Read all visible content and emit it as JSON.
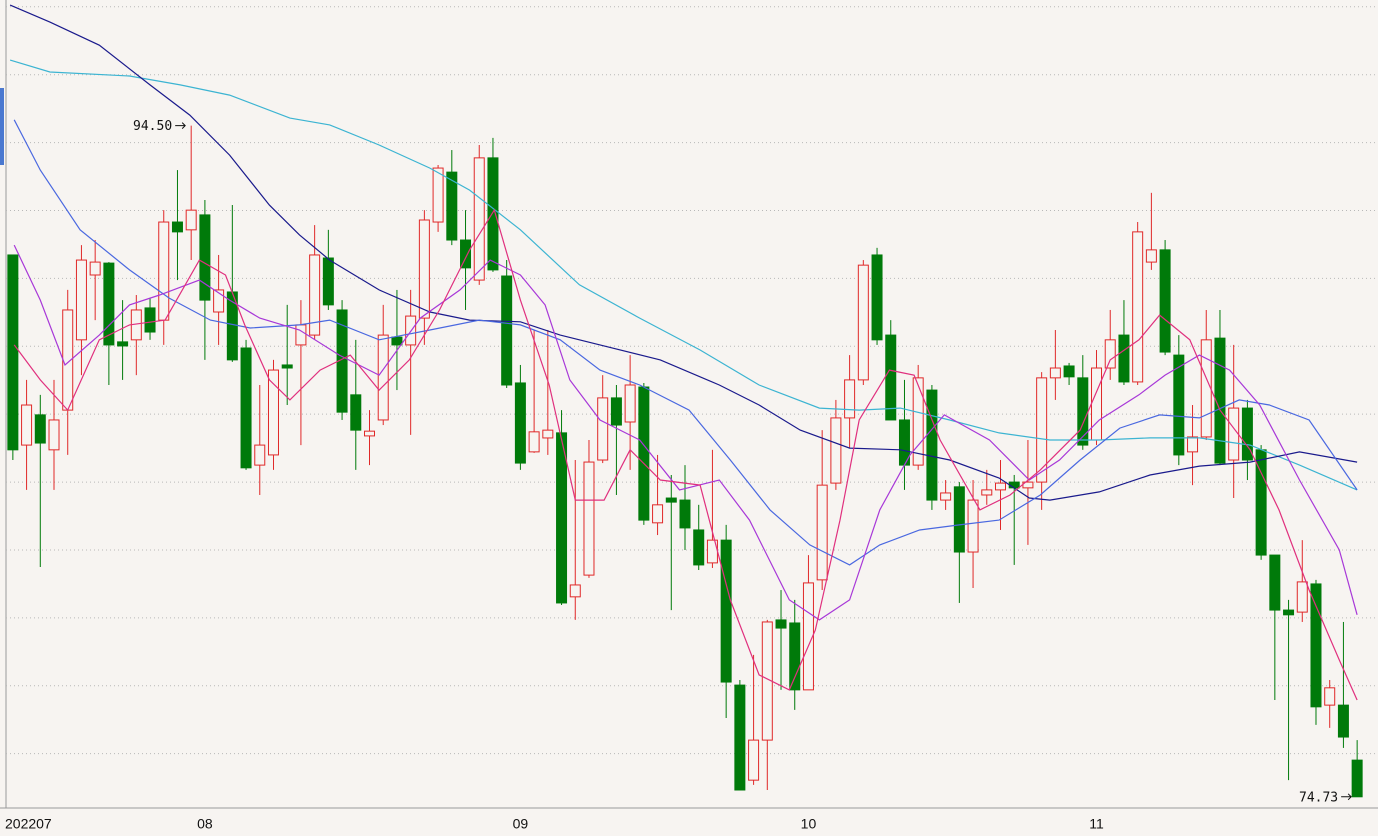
{
  "chart_data": {
    "type": "candlestick",
    "up_color": "#e02828",
    "down_color": "#007a0a",
    "ylim": [
      74.4,
      98.2
    ],
    "yticks": [
      76,
      78,
      80,
      82,
      84,
      86,
      88,
      90,
      92,
      94,
      96,
      98
    ],
    "grid": true,
    "categories": [
      "202207",
      null,
      null,
      null,
      null,
      null,
      null,
      null,
      null,
      null,
      null,
      null,
      null,
      null,
      "08",
      null,
      null,
      null,
      null,
      null,
      null,
      null,
      null,
      null,
      null,
      null,
      null,
      null,
      null,
      null,
      null,
      null,
      null,
      null,
      null,
      null,
      null,
      "09",
      null,
      null,
      null,
      null,
      null,
      null,
      null,
      null,
      null,
      null,
      null,
      null,
      null,
      null,
      null,
      null,
      null,
      null,
      null,
      null,
      "10",
      null,
      null,
      null,
      null,
      null,
      null,
      null,
      null,
      null,
      null,
      null,
      null,
      null,
      null,
      null,
      null,
      null,
      null,
      null,
      null,
      "11",
      null,
      null,
      null,
      null,
      null,
      null,
      null,
      null,
      null,
      null,
      null,
      null,
      null,
      null,
      null,
      null,
      null,
      null,
      null
    ],
    "candles": [
      [
        90.69,
        90.69,
        84.65,
        84.95
      ],
      [
        85.09,
        87.01,
        83.77,
        86.27
      ],
      [
        85.98,
        86.57,
        81.5,
        85.15
      ],
      [
        84.95,
        87.01,
        83.77,
        85.83
      ],
      [
        86.12,
        89.66,
        84.8,
        89.07
      ],
      [
        88.19,
        90.98,
        87.15,
        90.54
      ],
      [
        90.1,
        91.13,
        88.77,
        90.48
      ],
      [
        90.45,
        90.48,
        86.86,
        88.04
      ],
      [
        88.13,
        89.36,
        87.01,
        88.01
      ],
      [
        88.19,
        89.51,
        87.15,
        89.07
      ],
      [
        89.13,
        89.42,
        88.19,
        88.42
      ],
      [
        88.77,
        92.01,
        88.04,
        91.66
      ],
      [
        91.66,
        93.19,
        89.95,
        91.37
      ],
      [
        91.43,
        94.5,
        90.54,
        92.01
      ],
      [
        91.87,
        92.31,
        87.6,
        89.36
      ],
      [
        89.01,
        90.69,
        88.04,
        89.66
      ],
      [
        89.6,
        92.16,
        87.54,
        87.6
      ],
      [
        87.95,
        88.19,
        84.36,
        84.42
      ],
      [
        84.5,
        86.86,
        83.62,
        85.09
      ],
      [
        84.8,
        87.6,
        84.36,
        87.3
      ],
      [
        87.45,
        89.22,
        86.27,
        87.36
      ],
      [
        88.04,
        89.36,
        85.09,
        88.63
      ],
      [
        88.33,
        91.57,
        88.19,
        90.69
      ],
      [
        90.6,
        91.43,
        89.07,
        89.22
      ],
      [
        89.07,
        89.36,
        85.83,
        86.06
      ],
      [
        86.57,
        88.19,
        84.36,
        85.53
      ],
      [
        85.36,
        86.12,
        84.5,
        85.5
      ],
      [
        85.83,
        89.22,
        85.68,
        88.33
      ],
      [
        88.27,
        89.66,
        86.71,
        88.04
      ],
      [
        88.04,
        89.66,
        85.39,
        88.89
      ],
      [
        88.83,
        92.01,
        88.04,
        91.72
      ],
      [
        91.66,
        93.34,
        91.37,
        93.25
      ],
      [
        93.13,
        93.78,
        90.98,
        91.13
      ],
      [
        91.13,
        92.01,
        89.07,
        90.31
      ],
      [
        89.95,
        93.93,
        89.81,
        93.55
      ],
      [
        93.55,
        94.14,
        90.19,
        90.25
      ],
      [
        90.07,
        90.54,
        86.77,
        86.86
      ],
      [
        86.92,
        87.45,
        84.36,
        84.56
      ],
      [
        84.89,
        88.48,
        84.86,
        85.48
      ],
      [
        85.3,
        88.48,
        84.8,
        85.53
      ],
      [
        85.45,
        86.12,
        80.38,
        80.44
      ],
      [
        80.62,
        84.65,
        79.94,
        80.97
      ],
      [
        81.26,
        85.24,
        81.18,
        84.59
      ],
      [
        84.65,
        87.15,
        84.56,
        86.48
      ],
      [
        86.48,
        86.86,
        83.62,
        85.68
      ],
      [
        85.77,
        87.74,
        84.36,
        86.86
      ],
      [
        86.8,
        86.92,
        82.74,
        82.88
      ],
      [
        82.8,
        84.8,
        82.44,
        83.33
      ],
      [
        83.53,
        84.21,
        80.23,
        83.41
      ],
      [
        83.47,
        84.5,
        82.0,
        82.65
      ],
      [
        82.59,
        83.33,
        81.41,
        81.56
      ],
      [
        81.62,
        84.95,
        81.47,
        82.29
      ],
      [
        82.29,
        82.74,
        77.05,
        78.11
      ],
      [
        78.02,
        78.17,
        74.93,
        74.93
      ],
      [
        75.22,
        78.91,
        75.08,
        76.4
      ],
      [
        76.4,
        79.94,
        74.93,
        79.88
      ],
      [
        79.94,
        80.82,
        77.88,
        79.7
      ],
      [
        79.85,
        80.53,
        77.29,
        77.88
      ],
      [
        77.88,
        81.85,
        77.88,
        81.03
      ],
      [
        81.12,
        85.53,
        80.82,
        83.91
      ],
      [
        83.97,
        86.42,
        83.77,
        85.89
      ],
      [
        85.89,
        87.74,
        85.0,
        87.01
      ],
      [
        87.01,
        90.54,
        86.86,
        90.39
      ],
      [
        90.69,
        90.9,
        88.04,
        88.19
      ],
      [
        88.33,
        88.77,
        85.83,
        85.83
      ],
      [
        85.83,
        87.01,
        83.77,
        84.5
      ],
      [
        84.5,
        87.45,
        84.36,
        87.07
      ],
      [
        86.71,
        86.86,
        83.18,
        83.47
      ],
      [
        83.47,
        84.06,
        83.18,
        83.68
      ],
      [
        83.86,
        84.0,
        80.44,
        81.94
      ],
      [
        81.94,
        84.06,
        80.88,
        83.47
      ],
      [
        83.62,
        84.36,
        83.33,
        83.77
      ],
      [
        83.77,
        84.65,
        82.59,
        83.97
      ],
      [
        84.0,
        84.21,
        81.56,
        83.83
      ],
      [
        83.83,
        85.24,
        82.15,
        84.0
      ],
      [
        84.0,
        87.24,
        83.18,
        87.07
      ],
      [
        87.07,
        88.48,
        86.42,
        87.36
      ],
      [
        87.42,
        87.51,
        86.86,
        87.1
      ],
      [
        87.07,
        87.74,
        84.95,
        85.09
      ],
      [
        85.24,
        87.89,
        85.09,
        87.36
      ],
      [
        87.36,
        89.07,
        87.01,
        88.19
      ],
      [
        88.33,
        89.36,
        86.86,
        86.95
      ],
      [
        86.95,
        91.66,
        86.86,
        91.37
      ],
      [
        90.48,
        92.52,
        90.25,
        90.84
      ],
      [
        90.84,
        91.13,
        87.74,
        87.83
      ],
      [
        87.74,
        88.33,
        84.5,
        84.8
      ],
      [
        84.89,
        86.27,
        83.91,
        85.33
      ],
      [
        85.33,
        89.07,
        85.24,
        88.19
      ],
      [
        88.24,
        89.07,
        84.5,
        84.56
      ],
      [
        84.65,
        88.04,
        83.53,
        86.18
      ],
      [
        86.18,
        86.42,
        84.06,
        84.65
      ],
      [
        84.95,
        85.09,
        81.71,
        81.85
      ],
      [
        81.85,
        81.85,
        77.58,
        80.23
      ],
      [
        80.23,
        80.53,
        75.22,
        80.09
      ],
      [
        80.17,
        82.29,
        79.88,
        81.06
      ],
      [
        81.0,
        81.12,
        76.85,
        77.38
      ],
      [
        77.43,
        78.17,
        76.76,
        77.94
      ],
      [
        77.43,
        79.88,
        76.17,
        76.49
      ],
      [
        75.81,
        76.4,
        74.73,
        74.73
      ]
    ],
    "series": [
      {
        "color": "#3cb4d2",
        "x": [
          -0.2,
          2.7,
          8.5,
          12.2,
          15.8,
          20.2,
          23.1,
          26.7,
          30.4,
          33.3,
          37.0,
          41.3,
          45.7,
          50.1,
          54.4,
          58.8,
          61.7,
          64.7,
          68.3,
          71.9,
          75.6,
          79.2,
          82.9,
          86.5,
          90.2,
          93.8,
          98.0
        ],
        "values": [
          96.43,
          96.08,
          95.96,
          95.7,
          95.4,
          94.72,
          94.52,
          93.93,
          93.25,
          92.6,
          91.43,
          89.81,
          88.83,
          87.89,
          86.86,
          86.18,
          86.12,
          86.18,
          85.83,
          85.45,
          85.24,
          85.24,
          85.3,
          85.3,
          85.09,
          84.5,
          83.77
        ]
      },
      {
        "color": "#1a1a8c",
        "x": [
          -0.2,
          2.7,
          6.3,
          10.0,
          12.9,
          15.8,
          18.7,
          20.9,
          23.1,
          26.7,
          30.4,
          33.3,
          37.0,
          39.9,
          42.8,
          47.2,
          51.5,
          54.4,
          57.4,
          61.0,
          64.7,
          68.3,
          71.9,
          74.1,
          75.6,
          79.2,
          82.9,
          86.5,
          90.2,
          93.8,
          98.0
        ],
        "values": [
          98.05,
          97.55,
          96.87,
          95.7,
          94.81,
          93.63,
          92.16,
          91.28,
          90.54,
          89.66,
          89.01,
          88.77,
          88.72,
          88.33,
          88.04,
          87.6,
          86.86,
          86.27,
          85.53,
          85.0,
          84.95,
          84.65,
          84.12,
          83.53,
          83.47,
          83.71,
          84.21,
          84.47,
          84.59,
          84.89,
          84.59
        ]
      },
      {
        "color": "#4a68e0",
        "x": [
          0.1,
          2.0,
          4.9,
          8.5,
          11.4,
          14.4,
          17.3,
          20.9,
          23.1,
          26.7,
          30.4,
          34.0,
          37.0,
          39.9,
          42.8,
          45.7,
          49.3,
          52.3,
          55.2,
          58.1,
          61.0,
          63.2,
          66.1,
          69.0,
          71.9,
          74.9,
          77.8,
          80.7,
          83.6,
          86.5,
          89.4,
          91.6,
          94.5,
          98.0
        ],
        "values": [
          94.67,
          93.19,
          91.43,
          90.25,
          89.42,
          88.77,
          88.54,
          88.63,
          88.77,
          88.19,
          88.48,
          88.77,
          88.63,
          88.19,
          87.3,
          86.86,
          86.12,
          84.65,
          83.18,
          82.15,
          81.56,
          82.15,
          82.59,
          82.74,
          82.88,
          83.62,
          84.65,
          85.59,
          85.98,
          85.89,
          86.42,
          86.27,
          85.83,
          83.77
        ]
      },
      {
        "color": "#a838d8",
        "x": [
          0.1,
          2.0,
          3.8,
          6.3,
          8.5,
          10.7,
          13.6,
          15.8,
          18.0,
          20.9,
          23.8,
          26.7,
          29.7,
          32.6,
          34.8,
          37.0,
          38.8,
          40.6,
          42.8,
          45.7,
          48.6,
          51.5,
          53.7,
          56.6,
          58.8,
          61.0,
          63.2,
          65.4,
          67.9,
          71.2,
          74.1,
          76.3,
          79.2,
          82.1,
          84.0,
          86.5,
          88.7,
          90.9,
          93.8,
          96.7,
          98.0
        ],
        "values": [
          90.98,
          89.36,
          87.45,
          88.33,
          89.22,
          89.51,
          89.95,
          89.36,
          88.83,
          88.48,
          87.74,
          87.15,
          88.83,
          89.66,
          90.54,
          90.1,
          89.22,
          87.01,
          85.83,
          85.24,
          83.77,
          84.06,
          82.88,
          80.53,
          79.94,
          80.53,
          83.18,
          84.8,
          85.98,
          85.24,
          84.06,
          84.65,
          85.83,
          86.57,
          87.15,
          87.74,
          87.3,
          86.27,
          84.06,
          82.0,
          80.09
        ]
      },
      {
        "color": "#e0307e",
        "x": [
          0.1,
          2.0,
          4.0,
          6.3,
          8.5,
          11.1,
          13.6,
          15.5,
          16.9,
          18.7,
          20.2,
          22.4,
          24.6,
          26.7,
          28.9,
          31.1,
          33.3,
          35.1,
          37.0,
          39.1,
          41.0,
          43.1,
          45.0,
          47.2,
          50.1,
          52.3,
          54.4,
          56.6,
          58.5,
          60.3,
          61.7,
          63.9,
          65.7,
          67.6,
          70.5,
          72.7,
          74.9,
          77.8,
          80.0,
          82.1,
          83.6,
          85.8,
          88.0,
          90.2,
          92.3,
          94.5,
          96.7,
          98.0
        ],
        "values": [
          88.04,
          87.01,
          86.12,
          88.19,
          88.63,
          88.77,
          90.54,
          90.1,
          88.63,
          87.01,
          86.42,
          87.3,
          87.74,
          86.71,
          87.6,
          89.07,
          90.84,
          92.01,
          89.36,
          86.86,
          83.47,
          83.47,
          84.95,
          84.06,
          83.91,
          80.53,
          78.32,
          77.88,
          79.64,
          82.88,
          85.83,
          87.3,
          87.15,
          85.24,
          83.18,
          83.62,
          84.36,
          85.53,
          87.6,
          88.19,
          88.92,
          88.19,
          86.12,
          84.95,
          83.18,
          80.82,
          78.76,
          77.58
        ]
      }
    ],
    "annotations": [
      {
        "value": 94.5,
        "label": "94.50"
      },
      {
        "value": 74.73,
        "label": "74.73"
      }
    ]
  }
}
